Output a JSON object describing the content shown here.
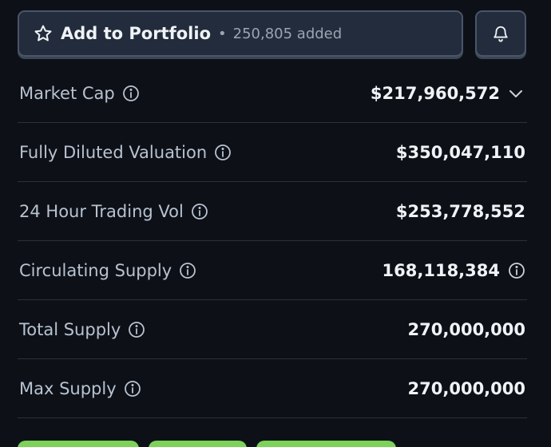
{
  "portfolio": {
    "label": "Add to Portfolio",
    "separator": "•",
    "added_text": "250,805 added"
  },
  "stats": {
    "rows": [
      {
        "label": "Market Cap",
        "value": "$217,960,572"
      },
      {
        "label": "Fully Diluted Valuation",
        "value": "$350,047,110"
      },
      {
        "label": "24 Hour Trading Vol",
        "value": "$253,778,552"
      },
      {
        "label": "Circulating Supply",
        "value": "168,118,384"
      },
      {
        "label": "Total Supply",
        "value": "270,000,000"
      },
      {
        "label": "Max Supply",
        "value": "270,000,000"
      }
    ]
  },
  "icons": {
    "star": "star-icon",
    "bell": "bell-icon",
    "info": "info-icon",
    "chevron": "chevron-down-icon"
  },
  "colors": {
    "background": "#0d1117",
    "button_bg": "#222c3c",
    "button_border": "#4a5568",
    "pill_green": "#7dd35a"
  }
}
